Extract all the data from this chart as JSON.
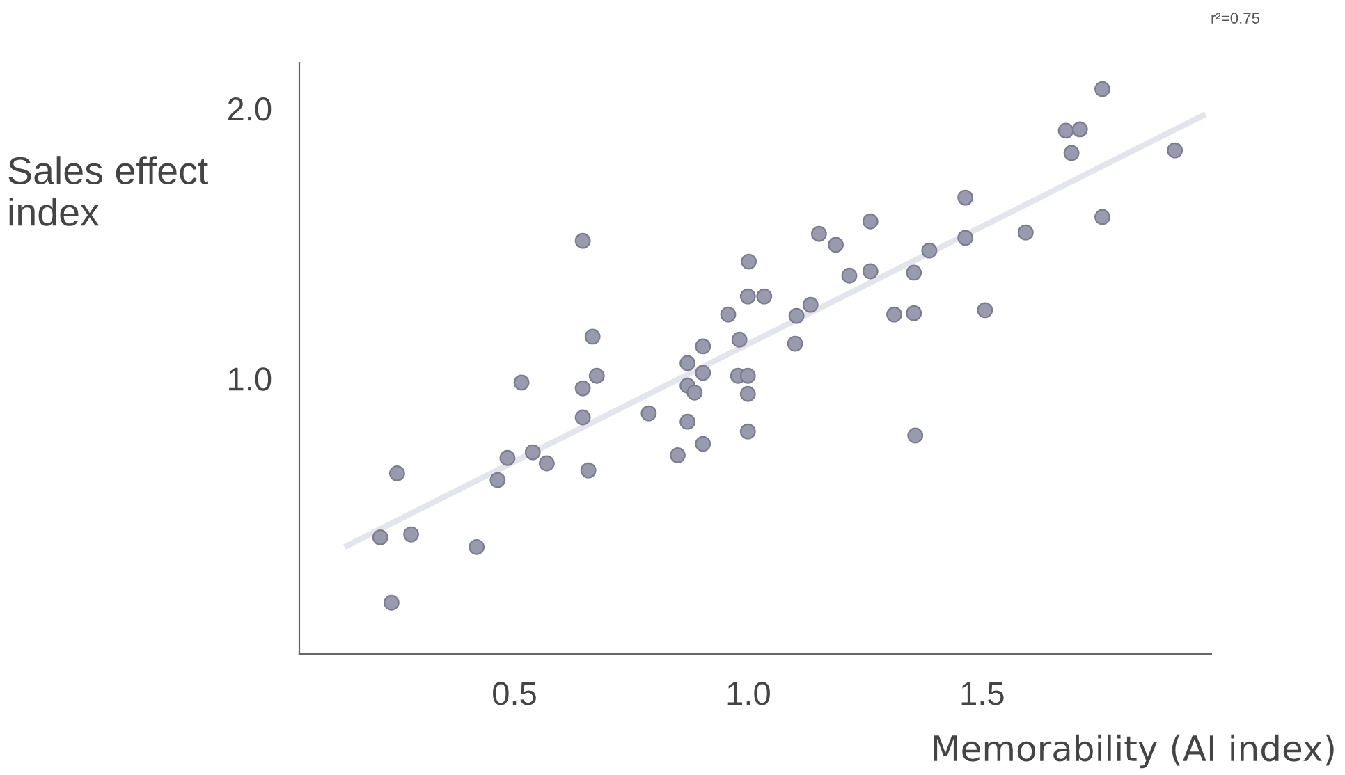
{
  "chart_data": {
    "type": "scatter",
    "xlabel": "Memorability (AI index)",
    "ylabel": "Sales effect\nindex",
    "annotations": [
      "r²=0.75"
    ],
    "grid": false,
    "xlim": [
      0.04,
      1.99
    ],
    "ylim": [
      -0.02,
      2.17
    ],
    "xticks": [
      {
        "value": 0.5,
        "label": "0.5"
      },
      {
        "value": 1.0,
        "label": "1.0"
      },
      {
        "value": 1.5,
        "label": "1.5"
      }
    ],
    "yticks": [
      {
        "value": 1.0,
        "label": "1.0"
      },
      {
        "value": 2.0,
        "label": "2.0"
      }
    ],
    "series": [
      {
        "color": "#9a9aae",
        "marker": "circle",
        "x": [
          0.213,
          0.249,
          0.279,
          0.237,
          0.419,
          0.464,
          0.485,
          0.539,
          0.569,
          0.515,
          0.646,
          0.667,
          0.676,
          0.646,
          0.646,
          0.658,
          0.787,
          0.849,
          0.87,
          0.903,
          0.87,
          0.903,
          0.903,
          0.87,
          0.885,
          0.957,
          0.981,
          0.978,
          0.999,
          0.999,
          0.999,
          1.001,
          0.999,
          1.034,
          1.103,
          1.133,
          1.1,
          1.151,
          1.187,
          1.261,
          1.216,
          1.261,
          1.312,
          1.354,
          1.354,
          1.387,
          1.464,
          1.464,
          1.357,
          1.506,
          1.593,
          1.679,
          1.709,
          1.691,
          1.757,
          1.912,
          1.757
        ],
        "values": [
          0.412,
          0.649,
          0.423,
          0.17,
          0.376,
          0.624,
          0.706,
          0.727,
          0.686,
          0.985,
          1.51,
          1.155,
          1.01,
          0.964,
          0.856,
          0.66,
          0.871,
          0.716,
          0.84,
          0.758,
          1.057,
          1.119,
          1.021,
          0.974,
          0.948,
          1.237,
          1.144,
          1.01,
          1.01,
          0.943,
          0.804,
          1.433,
          1.304,
          1.304,
          1.232,
          1.273,
          1.129,
          1.536,
          1.495,
          1.582,
          1.381,
          1.397,
          1.237,
          1.242,
          1.392,
          1.474,
          1.67,
          1.521,
          0.789,
          1.253,
          1.541,
          1.918,
          1.923,
          1.835,
          2.072,
          1.845,
          1.598
        ]
      },
      {
        "type": "line",
        "marker": "none",
        "color": "#e4e4ec",
        "x": [
          0.142,
          1.972
        ],
        "values": [
          0.381,
          1.974
        ]
      }
    ]
  }
}
